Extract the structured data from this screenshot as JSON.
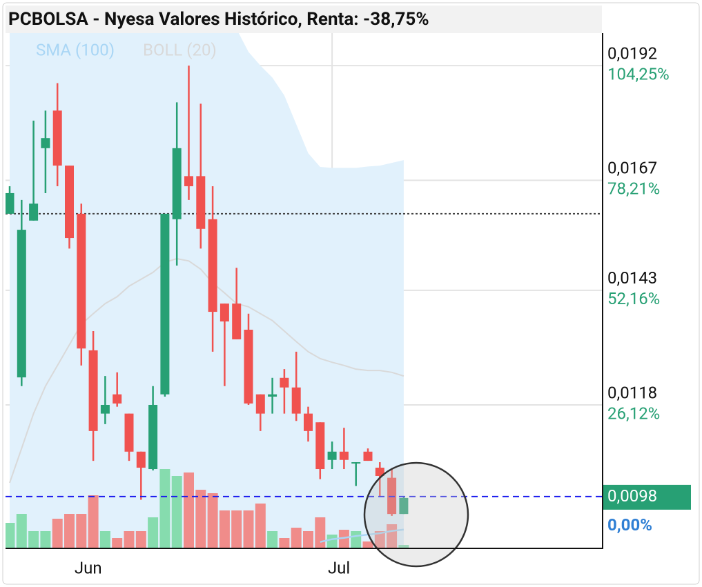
{
  "chart_data": {
    "type": "candlestick",
    "title": "PCBOLSA - Nyesa Valores Histórico, Renta: -38,75%",
    "categories": [
      null,
      null,
      null,
      null,
      null,
      null,
      "Jun",
      null,
      null,
      null,
      null,
      null,
      null,
      null,
      null,
      null,
      null,
      null,
      null,
      null,
      null,
      null,
      null,
      null,
      null,
      null,
      null,
      "Jul",
      null,
      null,
      null,
      null,
      null,
      null
    ],
    "open": [
      0.01597,
      0.0124,
      0.01582,
      0.0174,
      0.01822,
      0.01702,
      0.01597,
      0.01299,
      0.01161,
      0.01203,
      0.01161,
      0.01078,
      0.0104,
      0.01203,
      0.01585,
      0.01679,
      0.01679,
      0.01585,
      0.01401,
      0.01401,
      0.01344,
      0.01203,
      0.01198,
      0.01239,
      0.01218,
      0.01161,
      0.01142,
      0.0106,
      0.01078,
      0.01052,
      0.01078,
      0.01043,
      0.01021,
      0.00942
    ],
    "high": [
      0.01657,
      0.01627,
      0.018,
      0.01822,
      0.01882,
      0.01702,
      0.01619,
      0.01341,
      0.01243,
      0.01251,
      0.01161,
      0.01078,
      0.01221,
      0.01597,
      0.0184,
      0.0192,
      0.01837,
      0.01657,
      0.01401,
      0.01479,
      0.01379,
      0.01203,
      0.01239,
      0.01258,
      0.01296,
      0.01176,
      0.01142,
      0.011,
      0.0113,
      0.01055,
      0.01085,
      0.01055,
      0.0104,
      0.0098
    ],
    "low": [
      0.01597,
      0.01221,
      0.01582,
      0.01642,
      0.01657,
      0.01521,
      0.01266,
      0.01058,
      0.01138,
      0.01176,
      0.01058,
      0.00973,
      0.01037,
      0.01198,
      0.01484,
      0.01627,
      0.01521,
      0.01296,
      0.01221,
      0.01323,
      0.0118,
      0.01123,
      0.01161,
      0.01161,
      0.01145,
      0.011,
      0.01018,
      0.0104,
      0.0104,
      0.01003,
      0.01058,
      0.0098,
      0.00938,
      0.00942
    ],
    "close": [
      0.01642,
      0.01562,
      0.01619,
      0.01762,
      0.01702,
      0.01544,
      0.01303,
      0.01123,
      0.0118,
      0.01183,
      0.01078,
      0.01043,
      0.0118,
      0.01597,
      0.0174,
      0.01657,
      0.01564,
      0.01383,
      0.01362,
      0.01323,
      0.01183,
      0.01161,
      0.01203,
      0.01218,
      0.01161,
      0.01123,
      0.0104,
      0.01078,
      0.0106,
      0.01055,
      0.01058,
      0.01025,
      0.00942,
      0.00977
    ],
    "volume": [
      37,
      50,
      25,
      25,
      43,
      50,
      50,
      77,
      25,
      15,
      25,
      25,
      45,
      115,
      105,
      110,
      85,
      80,
      55,
      55,
      55,
      65,
      25,
      15,
      30,
      25,
      45,
      20,
      27,
      25,
      10,
      25,
      35,
      5
    ],
    "up_color": "#27a074",
    "down_color": "#f0524f",
    "up_volume_color": "#86dcae",
    "down_volume_color": "#f08c8a",
    "indicators": [
      {
        "name": "SMA (100)",
        "color": "#a9d6f5",
        "values": [
          null,
          null,
          null,
          null,
          null,
          null,
          null,
          null,
          null,
          null,
          null,
          null,
          null,
          null,
          null,
          null,
          null,
          null,
          null,
          null,
          null,
          null,
          null,
          null,
          null,
          null,
          0.00881,
          0.00887,
          0.0089,
          0.00894,
          0.00897,
          0.009,
          0.00905,
          0.00908
        ]
      },
      {
        "name": "BOLL (20)",
        "color": "#d9d9d9",
        "band_color": "#e1f1fc",
        "upper": [
          0.02,
          0.02,
          0.02,
          0.02,
          0.02,
          0.02,
          0.02,
          0.02,
          0.02,
          0.02,
          0.02,
          0.02,
          0.02,
          0.02,
          0.02,
          0.02,
          0.02,
          0.02,
          0.02,
          0.02,
          0.0195,
          0.0192,
          0.01894,
          0.01855,
          0.01792,
          0.01729,
          0.01699,
          0.01697,
          0.01697,
          0.01697,
          0.017,
          0.01702,
          0.01708,
          0.01714
        ],
        "middle": [
          0.0101,
          0.01085,
          0.01161,
          0.01221,
          0.01266,
          0.01311,
          0.01356,
          0.01379,
          0.01401,
          0.01416,
          0.01439,
          0.01454,
          0.01469,
          0.01491,
          0.01499,
          0.01494,
          0.01476,
          0.01446,
          0.01424,
          0.01401,
          0.01394,
          0.01379,
          0.01364,
          0.01341,
          0.01318,
          0.01296,
          0.01281,
          0.01273,
          0.01266,
          0.01258,
          0.01255,
          0.01255,
          0.01251,
          0.01243
        ]
      }
    ],
    "ylim": [
      0.00867,
      0.01991
    ],
    "yticks": [
      {
        "value": 0.0192,
        "label": "0,0192"
      },
      {
        "value": 0.0167,
        "label": "0,0167"
      },
      {
        "value": 0.0143,
        "label": "0,0143"
      },
      {
        "value": 0.0118,
        "label": "0,0118"
      }
    ],
    "ytick_change_labels": [
      "104,25%",
      "78,21%",
      "52,16%",
      "26,12%"
    ],
    "reference_line": 0.01597,
    "current_price": {
      "value": 0.0098,
      "label": "0,0098",
      "change_label": "0,00%"
    },
    "grid": true
  }
}
